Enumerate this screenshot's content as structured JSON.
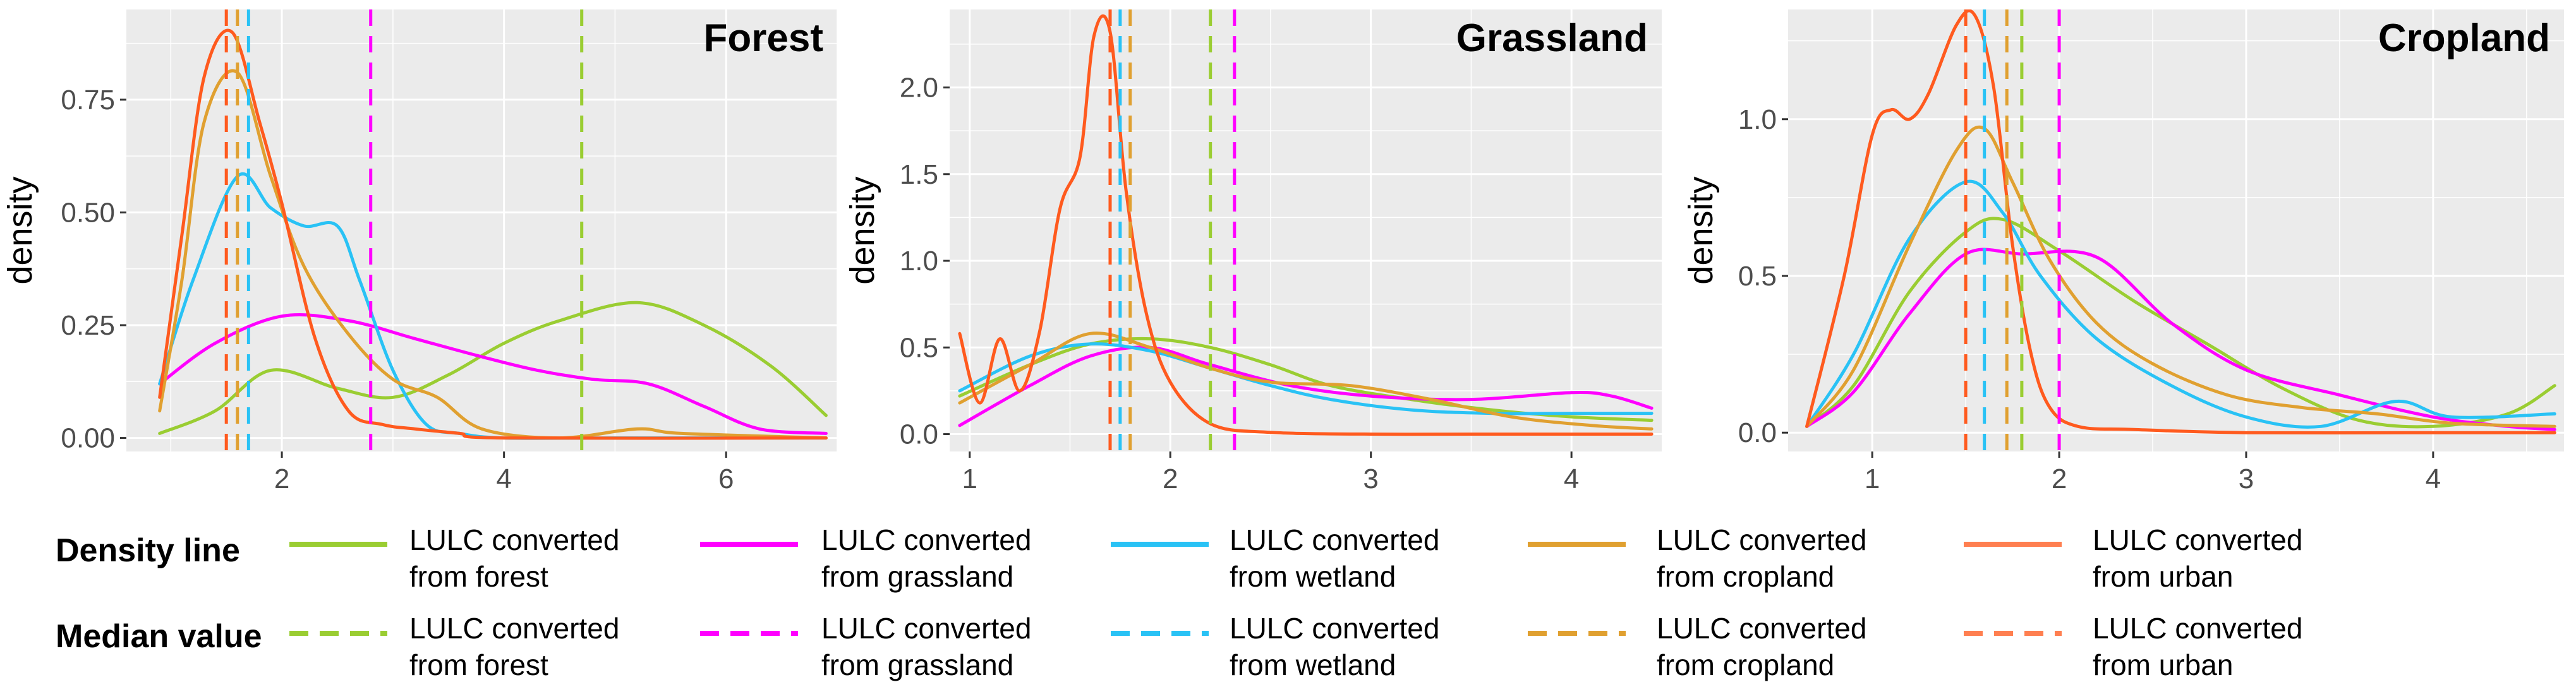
{
  "chart_data": [
    {
      "type": "line",
      "title": "Forest",
      "xlabel": "",
      "ylabel": "density",
      "xlim": [
        0.6,
        7.0
      ],
      "ylim": [
        -0.03,
        0.95
      ],
      "xticks": [
        2,
        4,
        6
      ],
      "xtick_labels": [
        "2",
        "4",
        "6"
      ],
      "yticks": [
        0,
        0.25,
        0.5,
        0.75
      ],
      "ytick_labels": [
        "0.00",
        "0.25",
        "0.50",
        "0.75"
      ],
      "series": [
        {
          "name": "LULC converted from forest",
          "color": "#9ACD32",
          "x": [
            0.9,
            1.4,
            1.9,
            2.5,
            3.0,
            3.5,
            4.0,
            4.5,
            5.2,
            5.8,
            6.4,
            6.9
          ],
          "values": [
            0.01,
            0.06,
            0.15,
            0.11,
            0.09,
            0.14,
            0.21,
            0.26,
            0.3,
            0.25,
            0.16,
            0.05
          ],
          "median": 4.7
        },
        {
          "name": "LULC converted from grassland",
          "color": "#FF00FF",
          "x": [
            0.9,
            1.4,
            2.0,
            2.6,
            3.2,
            3.8,
            4.3,
            4.8,
            5.3,
            5.8,
            6.3,
            6.9
          ],
          "values": [
            0.12,
            0.21,
            0.27,
            0.26,
            0.22,
            0.18,
            0.15,
            0.13,
            0.12,
            0.07,
            0.02,
            0.01
          ],
          "median": 2.8
        },
        {
          "name": "LULC converted from wetland",
          "color": "#29C2F5",
          "x": [
            0.9,
            1.2,
            1.6,
            1.9,
            2.2,
            2.5,
            2.7,
            3.0,
            3.3,
            3.6,
            4.0,
            5.0,
            6.9
          ],
          "values": [
            0.12,
            0.35,
            0.58,
            0.51,
            0.47,
            0.47,
            0.35,
            0.15,
            0.03,
            0.01,
            0.0,
            0.0,
            0.0
          ],
          "median": 1.7
        },
        {
          "name": "LULC converted from cropland",
          "color": "#E0A030",
          "x": [
            0.9,
            1.1,
            1.3,
            1.6,
            1.9,
            2.2,
            2.6,
            3.0,
            3.4,
            3.8,
            4.5,
            5.2,
            5.6,
            6.9
          ],
          "values": [
            0.06,
            0.35,
            0.7,
            0.81,
            0.58,
            0.38,
            0.23,
            0.13,
            0.09,
            0.02,
            0.0,
            0.02,
            0.01,
            0.0
          ],
          "median": 1.6
        },
        {
          "name": "LULC converted from urban",
          "color": "#FF5A1E",
          "x": [
            0.9,
            1.1,
            1.3,
            1.55,
            1.8,
            2.0,
            2.3,
            2.6,
            2.9,
            3.2,
            3.6,
            4.0,
            6.9
          ],
          "values": [
            0.09,
            0.45,
            0.8,
            0.9,
            0.7,
            0.52,
            0.22,
            0.06,
            0.03,
            0.02,
            0.01,
            0.0,
            0.0
          ],
          "median": 1.5
        }
      ]
    },
    {
      "type": "line",
      "title": "Grassland",
      "xlabel": "",
      "ylabel": "density",
      "xlim": [
        0.9,
        4.45
      ],
      "ylim": [
        -0.1,
        2.45
      ],
      "xticks": [
        1,
        2,
        3,
        4
      ],
      "xtick_labels": [
        "1",
        "2",
        "3",
        "4"
      ],
      "yticks": [
        0,
        0.5,
        1.0,
        1.5,
        2.0
      ],
      "ytick_labels": [
        "0.0",
        "0.5",
        "1.0",
        "1.5",
        "2.0"
      ],
      "series": [
        {
          "name": "LULC converted from forest",
          "color": "#9ACD32",
          "x": [
            0.95,
            1.3,
            1.6,
            1.9,
            2.2,
            2.5,
            2.8,
            3.2,
            3.6,
            4.0,
            4.4
          ],
          "values": [
            0.22,
            0.4,
            0.52,
            0.55,
            0.5,
            0.4,
            0.28,
            0.2,
            0.14,
            0.1,
            0.08
          ],
          "median": 2.2
        },
        {
          "name": "LULC converted from grassland",
          "color": "#FF00FF",
          "x": [
            0.95,
            1.3,
            1.6,
            1.9,
            2.2,
            2.6,
            3.0,
            3.5,
            4.0,
            4.2,
            4.4
          ],
          "values": [
            0.05,
            0.28,
            0.45,
            0.5,
            0.4,
            0.28,
            0.22,
            0.2,
            0.24,
            0.22,
            0.15
          ],
          "median": 2.32
        },
        {
          "name": "LULC converted from wetland",
          "color": "#29C2F5",
          "x": [
            0.95,
            1.3,
            1.6,
            1.9,
            2.2,
            2.5,
            2.8,
            3.2,
            3.6,
            4.0,
            4.4
          ],
          "values": [
            0.25,
            0.45,
            0.52,
            0.48,
            0.38,
            0.28,
            0.2,
            0.14,
            0.12,
            0.12,
            0.12
          ],
          "median": 1.75
        },
        {
          "name": "LULC converted from cropland",
          "color": "#E0A030",
          "x": [
            0.95,
            1.3,
            1.6,
            1.9,
            2.2,
            2.5,
            2.9,
            3.3,
            3.7,
            4.1,
            4.4
          ],
          "values": [
            0.18,
            0.4,
            0.58,
            0.5,
            0.38,
            0.3,
            0.28,
            0.2,
            0.1,
            0.05,
            0.03
          ],
          "median": 1.8
        },
        {
          "name": "LULC converted from urban",
          "color": "#FF5A1E",
          "x": [
            0.95,
            1.05,
            1.15,
            1.25,
            1.35,
            1.45,
            1.55,
            1.62,
            1.7,
            1.78,
            1.88,
            2.0,
            2.2,
            2.5,
            3.0,
            3.5,
            4.0,
            4.4
          ],
          "values": [
            0.58,
            0.18,
            0.55,
            0.25,
            0.6,
            1.3,
            1.6,
            2.3,
            2.32,
            1.4,
            0.7,
            0.3,
            0.06,
            0.01,
            0.0,
            0.0,
            0.0,
            0.0
          ],
          "median": 1.7
        }
      ]
    },
    {
      "type": "line",
      "title": "Cropland",
      "xlabel": "",
      "ylabel": "density",
      "xlim": [
        0.55,
        4.7
      ],
      "ylim": [
        -0.06,
        1.35
      ],
      "xticks": [
        1,
        2,
        3,
        4
      ],
      "xtick_labels": [
        "1",
        "2",
        "3",
        "4"
      ],
      "yticks": [
        0,
        0.5,
        1.0
      ],
      "ytick_labels": [
        "0.0",
        "0.5",
        "1.0"
      ],
      "series": [
        {
          "name": "LULC converted from forest",
          "color": "#9ACD32",
          "x": [
            0.65,
            0.9,
            1.2,
            1.5,
            1.7,
            2.0,
            2.4,
            2.8,
            3.2,
            3.6,
            4.0,
            4.4,
            4.65
          ],
          "values": [
            0.02,
            0.15,
            0.45,
            0.64,
            0.68,
            0.58,
            0.42,
            0.28,
            0.14,
            0.04,
            0.02,
            0.06,
            0.15
          ],
          "median": 1.8
        },
        {
          "name": "LULC converted from grassland",
          "color": "#FF00FF",
          "x": [
            0.65,
            0.9,
            1.2,
            1.5,
            1.8,
            2.2,
            2.6,
            3.0,
            3.5,
            4.0,
            4.4,
            4.65
          ],
          "values": [
            0.02,
            0.13,
            0.38,
            0.57,
            0.57,
            0.56,
            0.35,
            0.2,
            0.12,
            0.05,
            0.02,
            0.01
          ],
          "median": 2.0
        },
        {
          "name": "LULC converted from wetland",
          "color": "#29C2F5",
          "x": [
            0.65,
            0.9,
            1.2,
            1.5,
            1.7,
            1.9,
            2.2,
            2.6,
            3.0,
            3.4,
            3.8,
            4.1,
            4.65
          ],
          "values": [
            0.02,
            0.25,
            0.62,
            0.8,
            0.7,
            0.5,
            0.3,
            0.15,
            0.05,
            0.02,
            0.1,
            0.05,
            0.06
          ],
          "median": 1.6
        },
        {
          "name": "LULC converted from cropland",
          "color": "#E0A030",
          "x": [
            0.65,
            0.9,
            1.2,
            1.45,
            1.6,
            1.75,
            1.95,
            2.2,
            2.5,
            2.9,
            3.3,
            3.7,
            4.1,
            4.65
          ],
          "values": [
            0.02,
            0.2,
            0.6,
            0.9,
            0.97,
            0.8,
            0.55,
            0.35,
            0.22,
            0.12,
            0.08,
            0.06,
            0.03,
            0.02
          ],
          "median": 1.72
        },
        {
          "name": "LULC converted from urban",
          "color": "#FF5A1E",
          "x": [
            0.65,
            0.85,
            1.0,
            1.1,
            1.2,
            1.3,
            1.45,
            1.55,
            1.65,
            1.75,
            1.85,
            1.95,
            2.1,
            2.4,
            3.0,
            4.0,
            4.65
          ],
          "values": [
            0.02,
            0.5,
            0.95,
            1.03,
            1.0,
            1.08,
            1.3,
            1.33,
            1.1,
            0.6,
            0.25,
            0.08,
            0.02,
            0.01,
            0.0,
            0.0,
            0.0
          ],
          "median": 1.5
        }
      ]
    }
  ],
  "legend": {
    "density_line_label": "Density line",
    "median_value_label": "Median value",
    "entries": [
      {
        "text": "LULC converted\nfrom forest",
        "color": "#9ACD32"
      },
      {
        "text": "LULC converted\nfrom grassland",
        "color": "#FF00FF"
      },
      {
        "text": "LULC converted\nfrom wetland",
        "color": "#29C2F5"
      },
      {
        "text": "LULC converted\nfrom cropland",
        "color": "#E0A030"
      },
      {
        "text": "LULC converted\nfrom urban",
        "color": "#FF7F50"
      }
    ]
  }
}
